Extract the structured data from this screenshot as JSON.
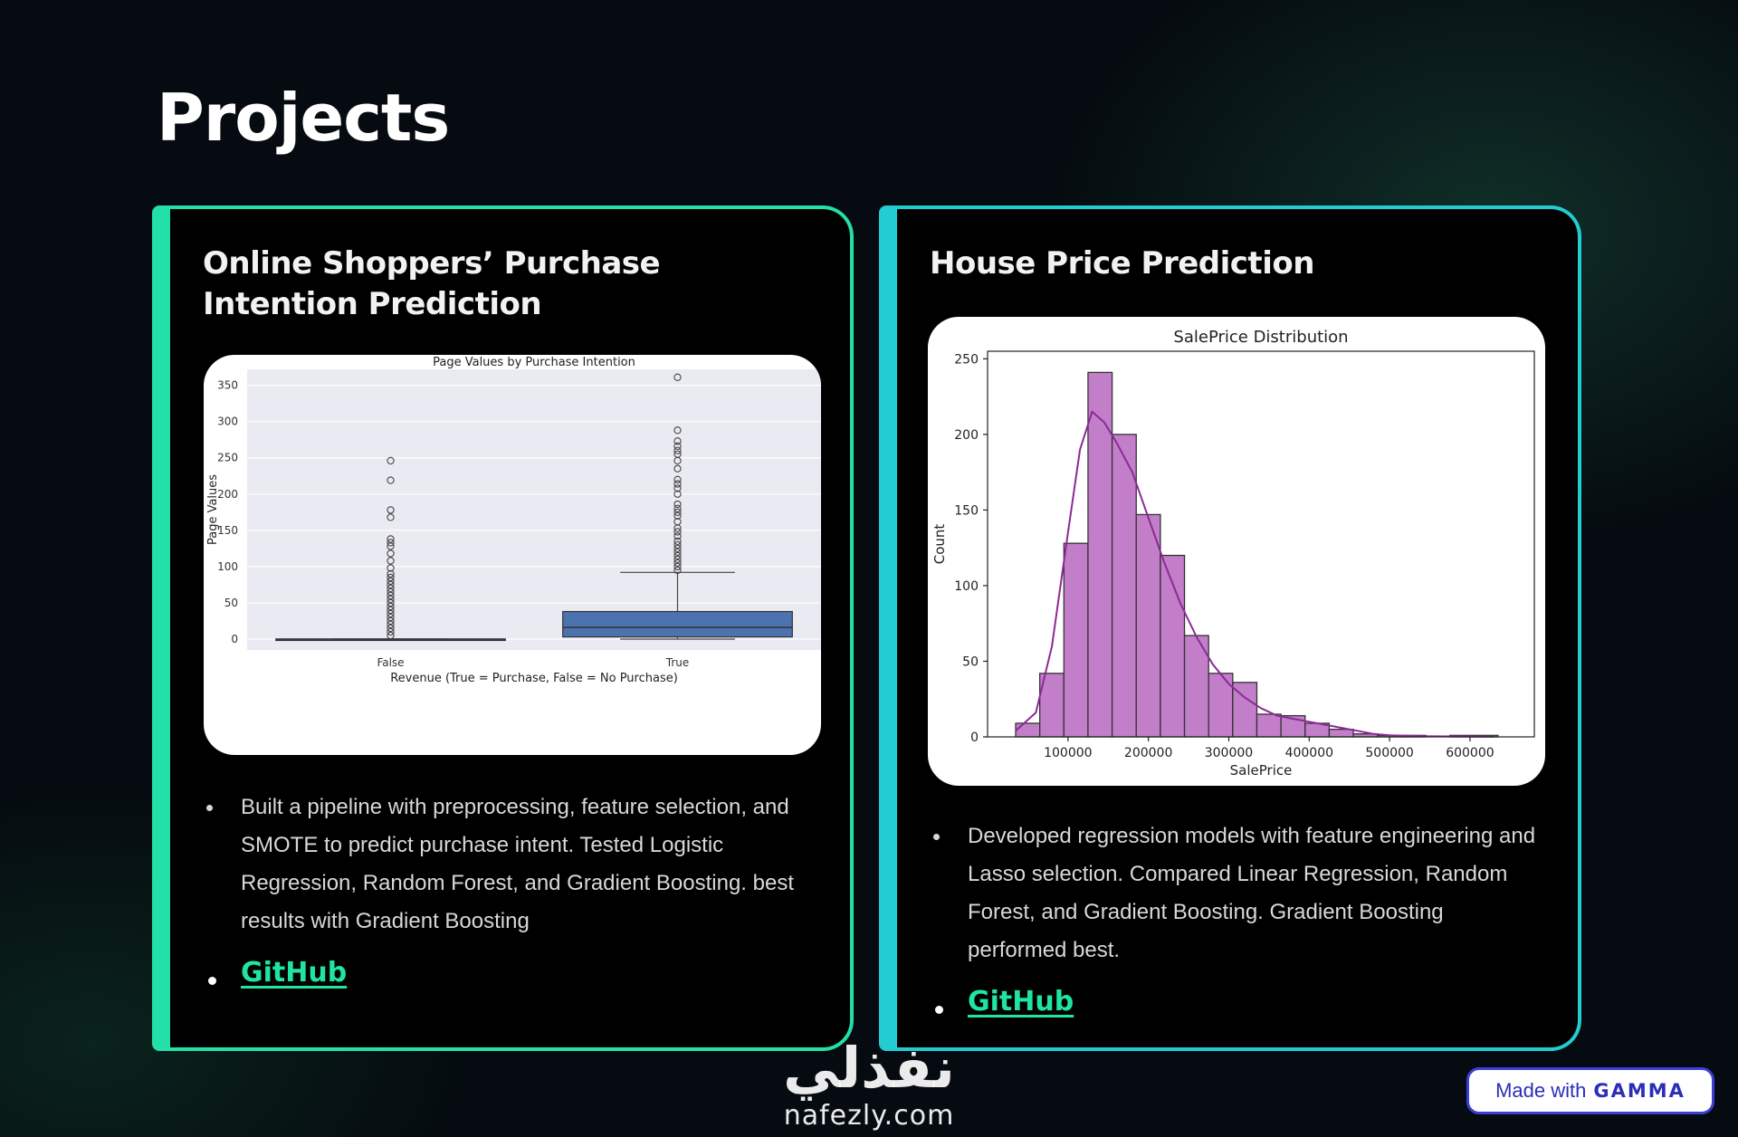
{
  "page": {
    "title": "Projects"
  },
  "projects": [
    {
      "title": "Online Shoppers’ Purchase Intention Prediction",
      "description": "Built a pipeline with preprocessing, feature selection, and SMOTE to predict purchase intent. Tested Logistic Regression, Random Forest, and Gradient Boosting. best results with Gradient Boosting",
      "link_label": "GitHub"
    },
    {
      "title": "House Price Prediction",
      "description": "Developed regression models with feature engineering and Lasso selection. Compared Linear Regression, Random Forest, and Gradient Boosting. Gradient Boosting performed best.",
      "link_label": "GitHub"
    }
  ],
  "chart_data": [
    {
      "type": "box",
      "title": "Page Values by Purchase Intention",
      "xlabel": "Revenue (True = Purchase, False = No Purchase)",
      "ylabel": "Page Values",
      "ylim": [
        -15,
        372
      ],
      "yticks": [
        0,
        50,
        100,
        150,
        200,
        250,
        300,
        350
      ],
      "grid": true,
      "categories": [
        "False",
        "True"
      ],
      "boxes": [
        {
          "name": "False",
          "q1": 0,
          "median": 0,
          "q3": 0,
          "whisker_low": 0,
          "whisker_high": 0,
          "outliers": [
            5,
            10,
            15,
            20,
            25,
            30,
            35,
            40,
            45,
            50,
            55,
            60,
            65,
            70,
            75,
            80,
            85,
            90,
            98,
            108,
            118,
            128,
            133,
            138,
            168,
            178,
            219,
            246
          ]
        },
        {
          "name": "True",
          "q1": 3,
          "median": 16,
          "q3": 38,
          "whisker_low": 0,
          "whisker_high": 92,
          "outliers": [
            95,
            100,
            105,
            110,
            115,
            120,
            125,
            130,
            135,
            142,
            148,
            153,
            162,
            170,
            175,
            180,
            186,
            200,
            208,
            214,
            220,
            235,
            246,
            255,
            260,
            266,
            273,
            288,
            361
          ]
        }
      ],
      "box_color": "#4c72b0",
      "background": "#eaeaf2"
    },
    {
      "type": "histogram",
      "title": "SalePrice Distribution",
      "xlabel": "SalePrice",
      "ylabel": "Count",
      "xlim": [
        0,
        680000
      ],
      "ylim": [
        0,
        255
      ],
      "xticks": [
        100000,
        200000,
        300000,
        400000,
        500000,
        600000
      ],
      "yticks": [
        0,
        50,
        100,
        150,
        200,
        250
      ],
      "bins": [
        {
          "x0": 34900,
          "x1": 64900,
          "count": 9
        },
        {
          "x0": 64900,
          "x1": 94900,
          "count": 42
        },
        {
          "x0": 94900,
          "x1": 124900,
          "count": 128
        },
        {
          "x0": 124900,
          "x1": 154900,
          "count": 241
        },
        {
          "x0": 154900,
          "x1": 184900,
          "count": 200
        },
        {
          "x0": 184900,
          "x1": 214900,
          "count": 147
        },
        {
          "x0": 214900,
          "x1": 244900,
          "count": 120
        },
        {
          "x0": 244900,
          "x1": 274900,
          "count": 67
        },
        {
          "x0": 274900,
          "x1": 304900,
          "count": 42
        },
        {
          "x0": 304900,
          "x1": 334900,
          "count": 36
        },
        {
          "x0": 334900,
          "x1": 364900,
          "count": 15
        },
        {
          "x0": 364900,
          "x1": 394900,
          "count": 14
        },
        {
          "x0": 394900,
          "x1": 424900,
          "count": 9
        },
        {
          "x0": 424900,
          "x1": 454900,
          "count": 5
        },
        {
          "x0": 454900,
          "x1": 484900,
          "count": 2
        },
        {
          "x0": 484900,
          "x1": 514900,
          "count": 1
        },
        {
          "x0": 514900,
          "x1": 544900,
          "count": 1
        },
        {
          "x0": 544900,
          "x1": 574900,
          "count": 0
        },
        {
          "x0": 574900,
          "x1": 604900,
          "count": 1
        },
        {
          "x0": 604900,
          "x1": 634900,
          "count": 1
        }
      ],
      "kde": [
        [
          34900,
          4
        ],
        [
          60000,
          16
        ],
        [
          80000,
          60
        ],
        [
          100000,
          135
        ],
        [
          115000,
          190
        ],
        [
          130000,
          215
        ],
        [
          145000,
          208
        ],
        [
          160000,
          195
        ],
        [
          180000,
          175
        ],
        [
          200000,
          145
        ],
        [
          220000,
          115
        ],
        [
          240000,
          88
        ],
        [
          260000,
          66
        ],
        [
          280000,
          48
        ],
        [
          300000,
          35
        ],
        [
          320000,
          26
        ],
        [
          340000,
          19
        ],
        [
          360000,
          14
        ],
        [
          380000,
          12
        ],
        [
          400000,
          10
        ],
        [
          420000,
          8
        ],
        [
          440000,
          6
        ],
        [
          460000,
          4
        ],
        [
          480000,
          2
        ],
        [
          500000,
          1
        ],
        [
          540000,
          0.5
        ],
        [
          580000,
          0.3
        ],
        [
          630000,
          0.2
        ]
      ],
      "bar_color": "#c27ec9",
      "line_color": "#8b2a96"
    }
  ],
  "watermark": {
    "arabic": "نفذلي",
    "latin": "nafezly.com"
  },
  "badge": {
    "prefix": "Made with",
    "brand": "GAMMA"
  }
}
